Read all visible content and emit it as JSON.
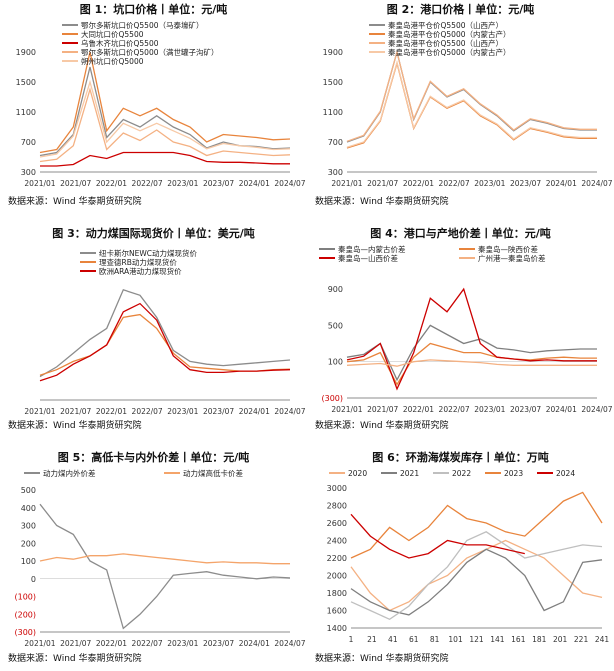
{
  "source_text": "数据来源：Wind 华泰期货研究院",
  "panels": [
    {
      "title": "图 1：坑口价格丨单位：元/吨"
    },
    {
      "title": "图 2：港口价格丨单位：元/吨"
    },
    {
      "title": "图 3：动力煤国际现货价丨单位：美元/吨"
    },
    {
      "title": "图 4：港口与产地价差丨单位：元/吨"
    },
    {
      "title": "图 5：高低卡与内外价差丨单位：元/吨"
    },
    {
      "title": "图 6：环渤海煤炭库存丨单位：万吨"
    }
  ],
  "chart_data": [
    {
      "type": "line",
      "title": "图 1：坑口价格丨单位：元/吨",
      "x_ticks": [
        "2021/01",
        "2021/07",
        "2022/01",
        "2022/07",
        "2023/01",
        "2023/07",
        "2024/01",
        "2024/07"
      ],
      "ylim": [
        300,
        1900
      ],
      "y_ticks": [
        300,
        700,
        1100,
        1500,
        1900
      ],
      "x": [
        "2021/01",
        "2021/04",
        "2021/07",
        "2021/10",
        "2022/01",
        "2022/04",
        "2022/07",
        "2022/10",
        "2023/01",
        "2023/04",
        "2023/07",
        "2023/10",
        "2024/01",
        "2024/04",
        "2024/07",
        "2024/09"
      ],
      "series": [
        {
          "name": "鄂尔多斯坑口价Q5500（马泰壕矿）",
          "color": "#8c8c8c",
          "values": [
            520,
            560,
            800,
            1700,
            760,
            1000,
            900,
            1050,
            900,
            800,
            620,
            700,
            650,
            640,
            610,
            620
          ]
        },
        {
          "name": "大同坑口价Q5500",
          "color": "#e8843c",
          "values": [
            560,
            600,
            900,
            1900,
            850,
            1150,
            1050,
            1150,
            1000,
            900,
            700,
            800,
            780,
            760,
            730,
            740
          ]
        },
        {
          "name": "乌鲁木齐坑口价Q5500",
          "color": "#cc0000",
          "values": [
            380,
            380,
            400,
            520,
            480,
            560,
            560,
            560,
            560,
            520,
            440,
            430,
            430,
            420,
            410,
            410
          ]
        },
        {
          "name": "鄂尔多斯坑口价Q5000（满世罐子沟矿）",
          "color": "#f4b183",
          "values": [
            440,
            470,
            650,
            1400,
            600,
            820,
            720,
            860,
            700,
            640,
            520,
            580,
            560,
            540,
            520,
            530
          ]
        },
        {
          "name": "朔州坑口价Q5000",
          "color": "#f7c9a6",
          "values": [
            500,
            540,
            780,
            1500,
            700,
            950,
            850,
            950,
            850,
            750,
            610,
            680,
            650,
            630,
            600,
            610
          ]
        }
      ]
    },
    {
      "type": "line",
      "title": "图 2：港口价格丨单位：元/吨",
      "x_ticks": [
        "2021/01",
        "2021/07",
        "2022/01",
        "2022/07",
        "2023/01",
        "2023/07",
        "2024/01",
        "2024/07"
      ],
      "ylim": [
        300,
        1900
      ],
      "y_ticks": [
        300,
        700,
        1100,
        1500,
        1900
      ],
      "x": [
        "2021/01",
        "2021/04",
        "2021/07",
        "2021/10",
        "2022/01",
        "2022/04",
        "2022/07",
        "2022/10",
        "2023/01",
        "2023/04",
        "2023/07",
        "2023/10",
        "2024/01",
        "2024/04",
        "2024/07",
        "2024/09"
      ],
      "series": [
        {
          "name": "秦皇岛港平仓价Q5500（山西产）",
          "color": "#8c8c8c",
          "values": [
            700,
            780,
            1100,
            1950,
            1000,
            1500,
            1300,
            1400,
            1200,
            1050,
            850,
            1000,
            950,
            880,
            860,
            860
          ]
        },
        {
          "name": "秦皇岛港平仓价Q5000（内蒙古产）",
          "color": "#e8843c",
          "values": [
            620,
            690,
            980,
            1750,
            880,
            1300,
            1150,
            1250,
            1050,
            930,
            730,
            880,
            830,
            770,
            750,
            750
          ]
        },
        {
          "name": "秦皇岛港平仓价Q5500（山西产）",
          "color": "#f4b183",
          "values": [
            710,
            790,
            1110,
            1960,
            1010,
            1510,
            1310,
            1410,
            1210,
            1060,
            860,
            1010,
            960,
            890,
            870,
            870
          ]
        },
        {
          "name": "秦皇岛港平仓价Q5000（内蒙古产）",
          "color": "#f7c9a6",
          "values": [
            630,
            700,
            990,
            1760,
            890,
            1310,
            1160,
            1260,
            1060,
            940,
            740,
            890,
            840,
            780,
            760,
            760
          ]
        }
      ]
    },
    {
      "type": "line",
      "title": "图 3：动力煤国际现货价丨单位：美元/吨",
      "x_ticks": [
        "2021/01",
        "2021/07",
        "2022/01",
        "2022/07",
        "2023/01",
        "2023/07",
        "2024/01",
        "2024/07"
      ],
      "series": [
        {
          "name": "纽卡斯尔NEWC动力煤现货价",
          "color": "#8c8c8c",
          "values": [
            85,
            120,
            170,
            220,
            260,
            400,
            380,
            300,
            180,
            140,
            130,
            125,
            130,
            135,
            140,
            145
          ]
        },
        {
          "name": "理查德RB动力煤现货价",
          "color": "#e8843c",
          "values": [
            90,
            110,
            140,
            160,
            200,
            300,
            310,
            260,
            170,
            120,
            115,
            110,
            105,
            105,
            110,
            112
          ]
        },
        {
          "name": "欧洲ARA港动力煤现货价",
          "color": "#cc0000",
          "values": [
            70,
            90,
            130,
            160,
            200,
            320,
            350,
            290,
            160,
            110,
            100,
            100,
            105,
            105,
            108,
            110
          ]
        }
      ],
      "x": [
        "2021/01",
        "2021/04",
        "2021/07",
        "2021/10",
        "2022/01",
        "2022/04",
        "2022/07",
        "2022/10",
        "2023/01",
        "2023/04",
        "2023/07",
        "2023/10",
        "2024/01",
        "2024/04",
        "2024/07",
        "2024/09"
      ]
    },
    {
      "type": "line",
      "title": "图 4：港口与产地价差丨单位：元/吨",
      "x_ticks": [
        "2021/01",
        "2021/07",
        "2022/01",
        "2022/07",
        "2023/01",
        "2023/07",
        "2024/01",
        "2024/07"
      ],
      "y_ticks": [
        "(300)",
        "100",
        "500",
        "900"
      ],
      "x": [
        "2021/01",
        "2021/04",
        "2021/07",
        "2021/10",
        "2022/01",
        "2022/04",
        "2022/07",
        "2022/10",
        "2023/01",
        "2023/04",
        "2023/07",
        "2023/10",
        "2024/01",
        "2024/04",
        "2024/07",
        "2024/09"
      ],
      "series": [
        {
          "name": "秦皇岛—内蒙古价差",
          "color": "#7f7f7f",
          "values": [
            150,
            180,
            300,
            -100,
            250,
            500,
            400,
            300,
            350,
            250,
            230,
            200,
            220,
            230,
            240,
            240
          ]
        },
        {
          "name": "秦皇岛—陕西价差",
          "color": "#e8843c",
          "values": [
            100,
            120,
            200,
            -150,
            150,
            300,
            250,
            200,
            200,
            150,
            130,
            120,
            140,
            150,
            140,
            140
          ]
        },
        {
          "name": "秦皇岛—山西价差",
          "color": "#cc0000",
          "values": [
            120,
            160,
            300,
            -200,
            200,
            800,
            650,
            900,
            300,
            150,
            130,
            110,
            120,
            110,
            110,
            110
          ]
        },
        {
          "name": "广州港—秦皇岛价差",
          "color": "#f4b183",
          "values": [
            60,
            70,
            80,
            50,
            100,
            120,
            110,
            100,
            90,
            70,
            60,
            60,
            60,
            60,
            60,
            60
          ]
        }
      ]
    },
    {
      "type": "line",
      "title": "图 5：高低卡与内外价差丨单位：元/吨",
      "x_ticks": [
        "2021/01",
        "2021/07",
        "2022/01",
        "2022/07",
        "2023/01",
        "2023/07",
        "2024/01",
        "2024/07"
      ],
      "y_ticks": [
        "(300)",
        "(200)",
        "(100)",
        "0",
        "100",
        "200",
        "300",
        "400",
        "500"
      ],
      "x": [
        "2021/01",
        "2021/04",
        "2021/07",
        "2021/10",
        "2022/01",
        "2022/04",
        "2022/07",
        "2022/10",
        "2023/01",
        "2023/04",
        "2023/07",
        "2023/10",
        "2024/01",
        "2024/04",
        "2024/07",
        "2024/09"
      ],
      "series": [
        {
          "name": "动力煤内外价差",
          "color": "#8c8c8c",
          "values": [
            420,
            300,
            250,
            100,
            50,
            -280,
            -200,
            -100,
            20,
            30,
            40,
            20,
            10,
            0,
            10,
            5
          ]
        },
        {
          "name": "动力煤高低卡价差",
          "color": "#f4a46a",
          "values": [
            100,
            120,
            110,
            130,
            130,
            140,
            130,
            120,
            110,
            100,
            90,
            95,
            90,
            90,
            85,
            85
          ]
        }
      ]
    },
    {
      "type": "line",
      "title": "图 6：环渤海煤炭库存丨单位：万吨",
      "x_ticks": [
        "1",
        "21",
        "41",
        "61",
        "81",
        "101",
        "121",
        "141",
        "161",
        "181",
        "201",
        "221",
        "241"
      ],
      "ylim": [
        1400,
        3000
      ],
      "y_ticks": [
        1400,
        1600,
        1800,
        2000,
        2200,
        2400,
        2600,
        2800,
        3000
      ],
      "x": [
        1,
        21,
        41,
        61,
        81,
        101,
        121,
        141,
        161,
        181,
        201,
        221,
        241,
        251
      ],
      "series": [
        {
          "name": "2020",
          "color": "#f4b183",
          "values": [
            2100,
            1800,
            1600,
            1700,
            1900,
            2000,
            2200,
            2300,
            2400,
            2300,
            2200,
            2000,
            1800,
            1750
          ]
        },
        {
          "name": "2021",
          "color": "#7f7f7f",
          "values": [
            1850,
            1700,
            1600,
            1550,
            1700,
            1900,
            2150,
            2300,
            2200,
            2000,
            1600,
            1700,
            2150,
            2180
          ]
        },
        {
          "name": "2022",
          "color": "#bfbfbf",
          "values": [
            1700,
            1600,
            1500,
            1650,
            1900,
            2100,
            2400,
            2500,
            2350,
            2200,
            2250,
            2300,
            2350,
            2330
          ]
        },
        {
          "name": "2023",
          "color": "#e8843c",
          "values": [
            2200,
            2300,
            2550,
            2400,
            2550,
            2800,
            2650,
            2600,
            2500,
            2450,
            2650,
            2850,
            2950,
            2600
          ]
        },
        {
          "name": "2024",
          "color": "#cc0000",
          "values": [
            2700,
            2450,
            2300,
            2200,
            2250,
            2400,
            2350,
            2350,
            2300,
            2250,
            null,
            null,
            null,
            null
          ]
        }
      ]
    }
  ]
}
